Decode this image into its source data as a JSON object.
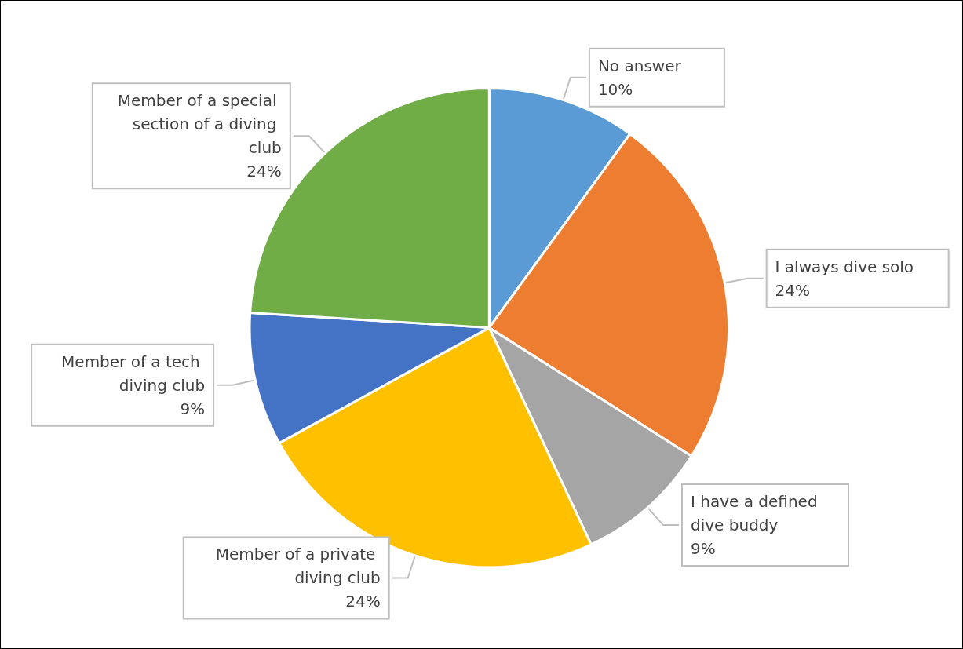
{
  "chart_data": {
    "type": "pie",
    "categories": [
      "No answer",
      "I always dive solo",
      "I have a defined dive buddy",
      "Member of a private diving club",
      "Member of a tech diving club",
      "Member of a special section of a diving club"
    ],
    "values": [
      10,
      24,
      9,
      24,
      9,
      24
    ],
    "value_labels": [
      "10%",
      "24%",
      "9%",
      "24%",
      "9%",
      "24%"
    ],
    "colors": [
      "#5b9bd5",
      "#ed7d31",
      "#a5a5a5",
      "#ffc000",
      "#4472c4",
      "#70ad47"
    ],
    "legend": false
  }
}
